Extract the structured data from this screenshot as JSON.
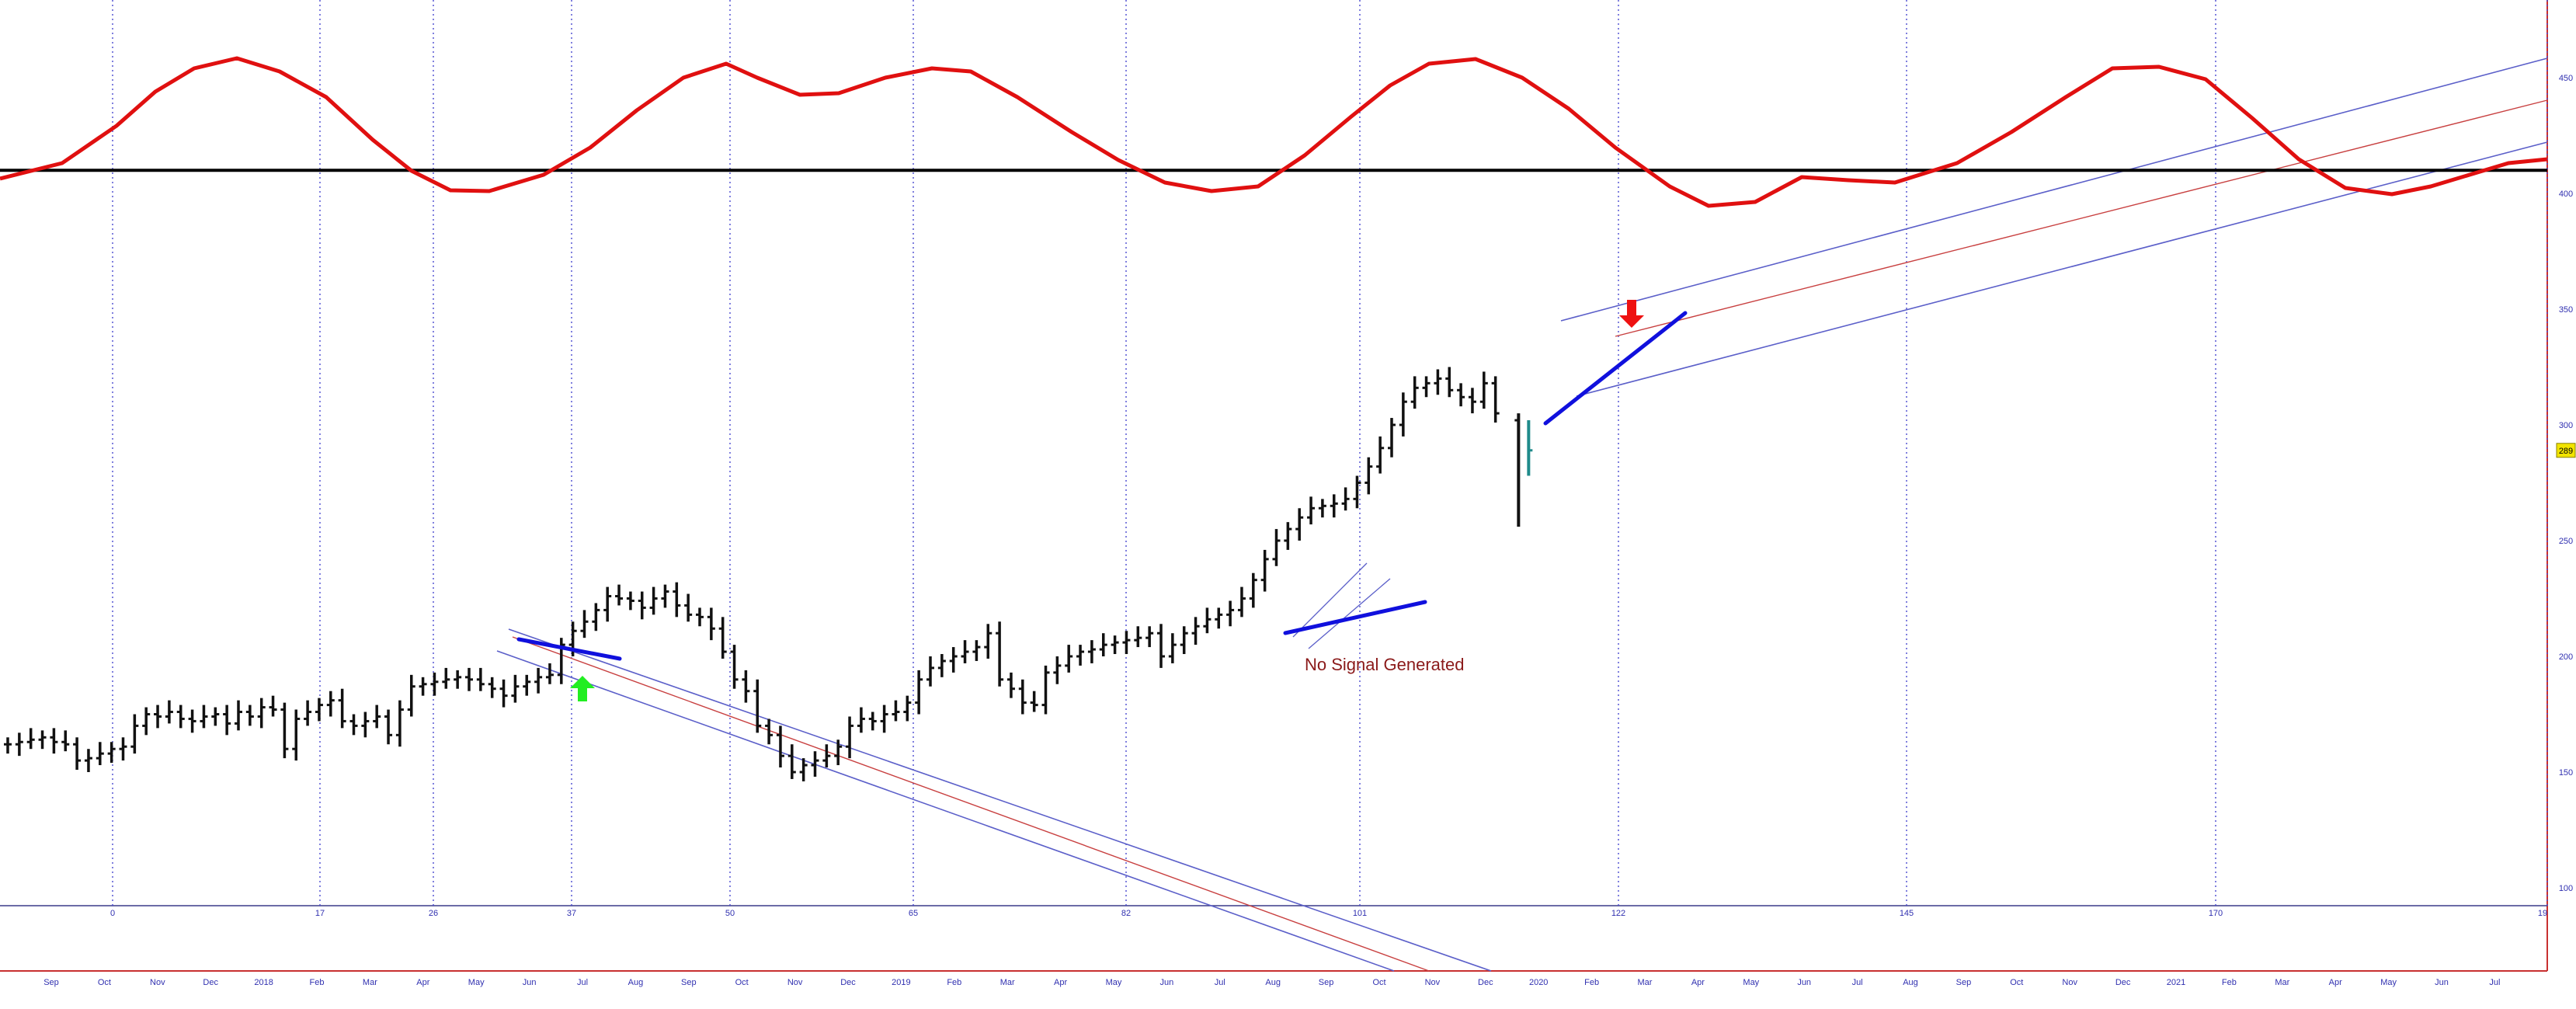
{
  "chart_data": {
    "type": "ohlc",
    "colors": {
      "cycle": "#e01010",
      "bars": "#111111",
      "recent_bar": "#1f8a8a",
      "channel": "#5b5fc9",
      "channel_mid": "#c84040",
      "trendline": "#1010dd",
      "cycle_markers": "#3333aa",
      "buy_arrow": "#22ee22",
      "sell_arrow": "#ee1111",
      "price_tag": "#f2e400",
      "annotation": "#8b1a1a",
      "axis_text": "#3030b0"
    },
    "y_axis": {
      "ticks": [
        "450",
        "400",
        "350",
        "300",
        "250",
        "200",
        "150",
        "100"
      ],
      "values": [
        450,
        400,
        350,
        300,
        250,
        200,
        150,
        100
      ],
      "current_price_label": "289",
      "current_price": 289
    },
    "x_months": [
      "Sep",
      "Oct",
      "Nov",
      "Dec",
      "2018",
      "Feb",
      "Mar",
      "Apr",
      "May",
      "Jun",
      "Jul",
      "Aug",
      "Sep",
      "Oct",
      "Nov",
      "Dec",
      "2019",
      "Feb",
      "Mar",
      "Apr",
      "May",
      "Jun",
      "Jul",
      "Aug",
      "Sep",
      "Oct",
      "Nov",
      "Dec",
      "2020",
      "Feb",
      "Mar",
      "Apr",
      "May",
      "Jun",
      "Jul",
      "Aug",
      "Sep",
      "Oct",
      "Nov",
      "Dec",
      "2021",
      "Feb",
      "Mar",
      "Apr",
      "May",
      "Jun",
      "Jul"
    ],
    "cycle_markers": [
      "0",
      "17",
      "26",
      "37",
      "50",
      "65",
      "82",
      "101",
      "122",
      "145",
      "170",
      "19"
    ],
    "annotation": "No Signal Generated",
    "horizontal_line": 410,
    "price_weekly": [
      162,
      163,
      164,
      165,
      163,
      162,
      155,
      156,
      158,
      160,
      161,
      170,
      175,
      174,
      176,
      173,
      172,
      174,
      175,
      171,
      176,
      174,
      178,
      177,
      160,
      173,
      176,
      179,
      181,
      172,
      170,
      172,
      174,
      166,
      177,
      187,
      188,
      189,
      190,
      191,
      190,
      188,
      186,
      183,
      187,
      189,
      191,
      192,
      205,
      211,
      215,
      220,
      226,
      225,
      224,
      221,
      225,
      228,
      222,
      218,
      217,
      212,
      202,
      190,
      185,
      170,
      166,
      157,
      150,
      153,
      155,
      157,
      161,
      170,
      173,
      172,
      175,
      176,
      180,
      190,
      195,
      198,
      200,
      202,
      204,
      210,
      190,
      186,
      180,
      179,
      193,
      196,
      200,
      202,
      203,
      205,
      206,
      207,
      208,
      210,
      200,
      205,
      210,
      213,
      216,
      218,
      220,
      225,
      233,
      242,
      250,
      255,
      260,
      264,
      265,
      266,
      268,
      275,
      282,
      290,
      300,
      310,
      316,
      318,
      320,
      315,
      312,
      310,
      318,
      305
    ]
  }
}
